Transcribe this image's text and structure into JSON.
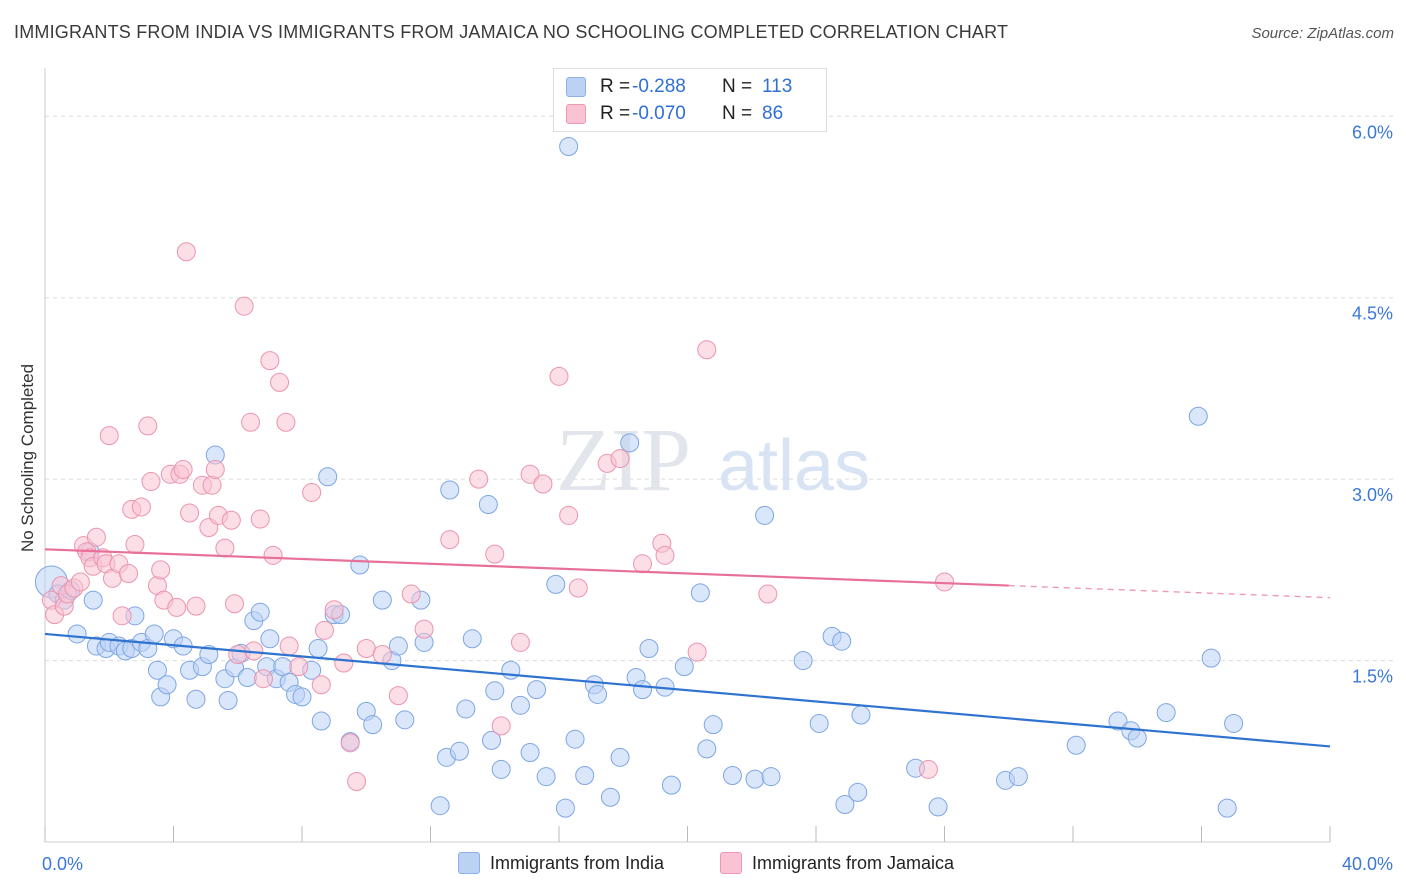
{
  "header": {
    "title": "IMMIGRANTS FROM INDIA VS IMMIGRANTS FROM JAMAICA NO SCHOOLING COMPLETED CORRELATION CHART",
    "source": "Source: ZipAtlas.com"
  },
  "watermark": {
    "zip": "ZIP",
    "atlas": "atlas"
  },
  "legend": {
    "india": {
      "r_label": "R =",
      "r_value": "-0.288",
      "n_label": "N =",
      "n_value": "113"
    },
    "jamaica": {
      "r_label": "R =",
      "r_value": "-0.070",
      "n_label": "N =",
      "n_value": "86"
    }
  },
  "bottom_legend": {
    "india": "Immigrants from India",
    "jamaica": "Immigrants from Jamaica"
  },
  "colors": {
    "india_fill": "#bcd2f5",
    "india_stroke": "#7ea6e3",
    "india_line": "#2f73d0",
    "jamaica_fill": "#f9c3d3",
    "jamaica_stroke": "#eb94ae",
    "jamaica_line": "#e86f97",
    "tick_label": "#3b78d8",
    "grid": "#dcdcdc"
  },
  "chart_data": {
    "type": "scatter",
    "xlabel": "",
    "ylabel": "No Schooling Completed",
    "xlim": [
      0,
      40
    ],
    "ylim": [
      0,
      6.3
    ],
    "x_tick_labels": [
      "0.0%",
      "40.0%"
    ],
    "y_ticks": [
      1.5,
      3.0,
      4.5,
      6.0
    ],
    "y_tick_labels": [
      "1.5%",
      "3.0%",
      "4.5%",
      "6.0%"
    ],
    "grid": true,
    "series": [
      {
        "name": "Immigrants from India",
        "trend": {
          "x": [
            0,
            40
          ],
          "y": [
            1.72,
            0.79
          ]
        },
        "points": [
          [
            0.2,
            2.15
          ],
          [
            0.4,
            2.05
          ],
          [
            0.6,
            2.0
          ],
          [
            0.8,
            2.08
          ],
          [
            1.0,
            1.72
          ],
          [
            1.4,
            2.4
          ],
          [
            1.5,
            2.0
          ],
          [
            1.6,
            1.62
          ],
          [
            1.9,
            1.6
          ],
          [
            2.0,
            1.65
          ],
          [
            2.3,
            1.62
          ],
          [
            2.5,
            1.58
          ],
          [
            2.7,
            1.6
          ],
          [
            2.8,
            1.87
          ],
          [
            3.0,
            1.65
          ],
          [
            3.2,
            1.6
          ],
          [
            3.4,
            1.72
          ],
          [
            3.5,
            1.42
          ],
          [
            3.6,
            1.2
          ],
          [
            3.8,
            1.3
          ],
          [
            4.0,
            1.68
          ],
          [
            4.3,
            1.62
          ],
          [
            4.5,
            1.42
          ],
          [
            4.7,
            1.18
          ],
          [
            4.9,
            1.45
          ],
          [
            5.1,
            1.55
          ],
          [
            5.3,
            3.2
          ],
          [
            5.6,
            1.35
          ],
          [
            5.7,
            1.17
          ],
          [
            5.9,
            1.44
          ],
          [
            6.1,
            1.56
          ],
          [
            6.3,
            1.36
          ],
          [
            6.5,
            1.83
          ],
          [
            6.7,
            1.9
          ],
          [
            6.9,
            1.45
          ],
          [
            7.0,
            1.68
          ],
          [
            7.2,
            1.35
          ],
          [
            7.4,
            1.45
          ],
          [
            7.6,
            1.32
          ],
          [
            7.8,
            1.22
          ],
          [
            8.0,
            1.2
          ],
          [
            8.3,
            1.42
          ],
          [
            8.5,
            1.6
          ],
          [
            8.6,
            1.0
          ],
          [
            8.8,
            3.02
          ],
          [
            9.0,
            1.88
          ],
          [
            9.2,
            1.88
          ],
          [
            9.5,
            0.83
          ],
          [
            9.8,
            2.29
          ],
          [
            10.0,
            1.08
          ],
          [
            10.2,
            0.97
          ],
          [
            10.5,
            2.0
          ],
          [
            10.8,
            1.5
          ],
          [
            11.0,
            1.62
          ],
          [
            11.2,
            1.01
          ],
          [
            11.7,
            2.0
          ],
          [
            11.8,
            1.65
          ],
          [
            12.3,
            0.3
          ],
          [
            12.5,
            0.7
          ],
          [
            12.6,
            2.91
          ],
          [
            12.9,
            0.75
          ],
          [
            13.1,
            1.1
          ],
          [
            13.3,
            1.68
          ],
          [
            13.8,
            2.79
          ],
          [
            13.9,
            0.84
          ],
          [
            14.0,
            1.25
          ],
          [
            14.2,
            0.6
          ],
          [
            14.5,
            1.42
          ],
          [
            14.8,
            1.13
          ],
          [
            15.1,
            0.74
          ],
          [
            15.3,
            1.26
          ],
          [
            15.6,
            0.54
          ],
          [
            15.9,
            2.13
          ],
          [
            16.2,
            0.28
          ],
          [
            16.3,
            5.75
          ],
          [
            16.5,
            0.85
          ],
          [
            16.8,
            0.55
          ],
          [
            17.1,
            1.3
          ],
          [
            17.2,
            1.22
          ],
          [
            17.6,
            0.37
          ],
          [
            17.9,
            0.7
          ],
          [
            18.2,
            3.3
          ],
          [
            18.4,
            1.36
          ],
          [
            18.6,
            1.26
          ],
          [
            18.8,
            1.6
          ],
          [
            19.3,
            1.28
          ],
          [
            19.5,
            0.47
          ],
          [
            19.9,
            1.45
          ],
          [
            20.4,
            2.06
          ],
          [
            20.6,
            0.77
          ],
          [
            20.8,
            0.97
          ],
          [
            21.4,
            0.55
          ],
          [
            22.1,
            0.52
          ],
          [
            22.4,
            2.7
          ],
          [
            22.6,
            0.54
          ],
          [
            23.6,
            1.5
          ],
          [
            24.1,
            0.98
          ],
          [
            24.5,
            1.7
          ],
          [
            24.8,
            1.66
          ],
          [
            24.9,
            0.31
          ],
          [
            25.3,
            0.41
          ],
          [
            25.4,
            1.05
          ],
          [
            27.1,
            0.61
          ],
          [
            27.8,
            0.29
          ],
          [
            29.9,
            0.51
          ],
          [
            30.3,
            0.54
          ],
          [
            32.1,
            0.8
          ],
          [
            33.4,
            1.0
          ],
          [
            33.8,
            0.92
          ],
          [
            34.0,
            0.86
          ],
          [
            34.9,
            1.07
          ],
          [
            35.9,
            3.52
          ],
          [
            36.3,
            1.52
          ],
          [
            36.8,
            0.28
          ],
          [
            37.0,
            0.98
          ]
        ]
      },
      {
        "name": "Immigrants from Jamaica",
        "trend": {
          "x": [
            0,
            30
          ],
          "y": [
            2.42,
            2.12
          ],
          "dashed_to": [
            40,
            2.02
          ]
        },
        "points": [
          [
            0.2,
            2.0
          ],
          [
            0.3,
            1.88
          ],
          [
            0.5,
            2.12
          ],
          [
            0.6,
            1.95
          ],
          [
            0.7,
            2.05
          ],
          [
            0.9,
            2.1
          ],
          [
            1.1,
            2.15
          ],
          [
            1.2,
            2.45
          ],
          [
            1.3,
            2.4
          ],
          [
            1.4,
            2.35
          ],
          [
            1.5,
            2.28
          ],
          [
            1.6,
            2.52
          ],
          [
            1.8,
            2.35
          ],
          [
            1.9,
            2.3
          ],
          [
            2.0,
            3.36
          ],
          [
            2.1,
            2.18
          ],
          [
            2.3,
            2.3
          ],
          [
            2.4,
            1.87
          ],
          [
            2.6,
            2.22
          ],
          [
            2.7,
            2.75
          ],
          [
            2.8,
            2.46
          ],
          [
            3.0,
            2.77
          ],
          [
            3.2,
            3.44
          ],
          [
            3.3,
            2.98
          ],
          [
            3.5,
            2.12
          ],
          [
            3.6,
            2.25
          ],
          [
            3.7,
            2.0
          ],
          [
            3.9,
            3.04
          ],
          [
            4.1,
            1.94
          ],
          [
            4.2,
            3.04
          ],
          [
            4.3,
            3.08
          ],
          [
            4.4,
            4.88
          ],
          [
            4.5,
            2.72
          ],
          [
            4.7,
            1.95
          ],
          [
            4.9,
            2.95
          ],
          [
            5.1,
            2.6
          ],
          [
            5.2,
            2.95
          ],
          [
            5.3,
            3.08
          ],
          [
            5.4,
            2.7
          ],
          [
            5.6,
            2.43
          ],
          [
            5.8,
            2.66
          ],
          [
            5.9,
            1.97
          ],
          [
            6.0,
            1.55
          ],
          [
            6.2,
            4.43
          ],
          [
            6.4,
            3.47
          ],
          [
            6.5,
            1.58
          ],
          [
            6.7,
            2.67
          ],
          [
            6.8,
            1.35
          ],
          [
            7.0,
            3.98
          ],
          [
            7.1,
            2.37
          ],
          [
            7.3,
            3.8
          ],
          [
            7.5,
            3.47
          ],
          [
            7.6,
            1.62
          ],
          [
            7.9,
            1.45
          ],
          [
            8.3,
            2.89
          ],
          [
            8.6,
            1.3
          ],
          [
            8.7,
            1.75
          ],
          [
            9.0,
            1.92
          ],
          [
            9.3,
            1.48
          ],
          [
            9.5,
            0.82
          ],
          [
            9.7,
            0.5
          ],
          [
            10.0,
            1.6
          ],
          [
            10.5,
            1.55
          ],
          [
            11.0,
            1.21
          ],
          [
            11.4,
            2.05
          ],
          [
            11.8,
            1.76
          ],
          [
            12.6,
            2.5
          ],
          [
            13.5,
            3.0
          ],
          [
            14.0,
            2.38
          ],
          [
            14.2,
            0.96
          ],
          [
            14.8,
            1.65
          ],
          [
            15.1,
            3.04
          ],
          [
            15.5,
            2.96
          ],
          [
            16.0,
            3.85
          ],
          [
            16.3,
            2.7
          ],
          [
            16.6,
            2.1
          ],
          [
            17.5,
            3.13
          ],
          [
            17.9,
            3.17
          ],
          [
            18.6,
            2.3
          ],
          [
            19.2,
            2.47
          ],
          [
            19.3,
            2.37
          ],
          [
            20.3,
            1.57
          ],
          [
            20.6,
            4.07
          ],
          [
            22.5,
            2.05
          ],
          [
            27.5,
            0.6
          ],
          [
            28.0,
            2.15
          ]
        ]
      }
    ]
  }
}
